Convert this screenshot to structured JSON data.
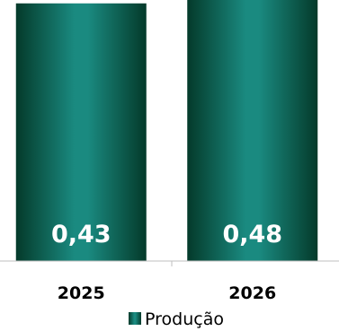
{
  "chart_data": {
    "type": "bar",
    "title": "",
    "xlabel": "",
    "ylabel": "",
    "categories": [
      "2025",
      "2026"
    ],
    "series": [
      {
        "name": "Produção",
        "values": [
          0.43,
          0.48
        ],
        "labels": [
          "0,43",
          "0,48"
        ]
      }
    ],
    "ylim": [
      0,
      0.5
    ],
    "grid": false,
    "legend_position": "bottom",
    "colors": {
      "bar_center": "#1a8a80",
      "bar_edge": "#043a2a",
      "axis": "#bfbfbf"
    }
  }
}
